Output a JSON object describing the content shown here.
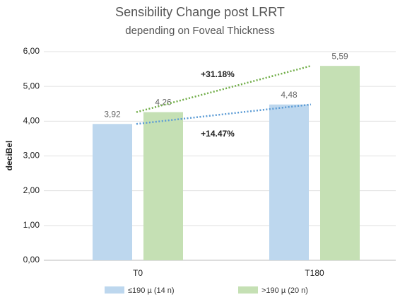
{
  "chart_data": {
    "type": "bar",
    "title": "Sensibility Change post LRRT",
    "subtitle": "depending on Foveal Thickness",
    "y_label": "deciBel",
    "categories": [
      "T0",
      "T180"
    ],
    "series": [
      {
        "name": "≤190 µ (14 n)",
        "color": "#bdd7ee",
        "trend_color": "#5b9bd5",
        "values": [
          3.92,
          4.48
        ],
        "value_labels": [
          "3,92",
          "4,48"
        ]
      },
      {
        "name": ">190 µ (20 n)",
        "color": "#c5e0b4",
        "trend_color": "#70ad47",
        "values": [
          4.26,
          5.59
        ],
        "value_labels": [
          "4,26",
          "5,59"
        ]
      }
    ],
    "annotations": [
      "+31.18%",
      "+14.47%"
    ],
    "ylim": [
      0,
      6
    ],
    "yticks": [
      {
        "value": 0,
        "label": "0,00"
      },
      {
        "value": 1,
        "label": "1,00"
      },
      {
        "value": 2,
        "label": "2,00"
      },
      {
        "value": 3,
        "label": "3,00"
      },
      {
        "value": 4,
        "label": "4,00"
      },
      {
        "value": 5,
        "label": "5,00"
      },
      {
        "value": 6,
        "label": "6,00"
      }
    ],
    "grid": true,
    "trendlines": true,
    "legend": "bottom"
  }
}
